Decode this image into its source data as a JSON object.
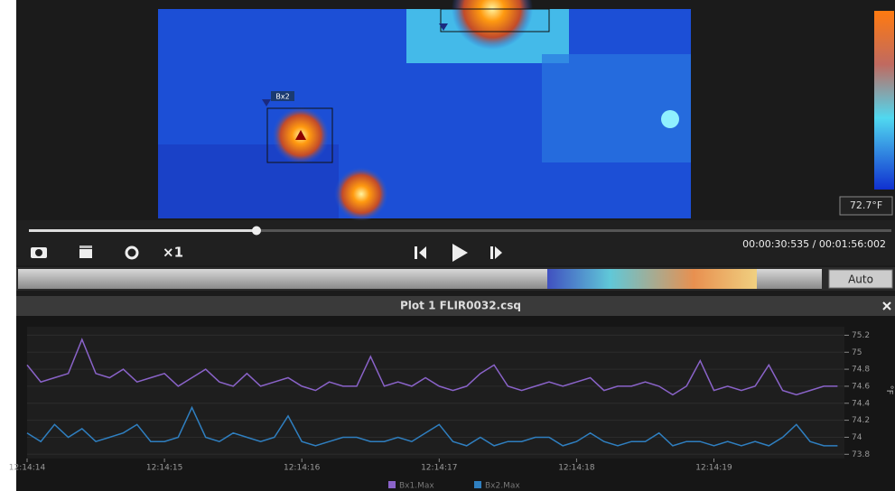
{
  "viewer": {
    "roi_label": "Bx2",
    "scale_min_label": "72.7°F"
  },
  "controls": {
    "speed": "×1",
    "time": "00:00:30:535 / 00:01:56:002",
    "auto_button": "Auto"
  },
  "chart_data": {
    "type": "line",
    "title": "Plot 1 FLIR0032.csq",
    "y_label": "°F",
    "x": [
      0,
      0.1,
      0.2,
      0.3,
      0.4,
      0.5,
      0.6,
      0.7,
      0.8,
      0.9,
      1,
      1.1,
      1.2,
      1.3,
      1.4,
      1.5,
      1.6,
      1.7,
      1.8,
      1.9,
      2,
      2.1,
      2.2,
      2.3,
      2.4,
      2.5,
      2.6,
      2.7,
      2.8,
      2.9,
      3,
      3.1,
      3.2,
      3.3,
      3.4,
      3.5,
      3.6,
      3.7,
      3.8,
      3.9,
      4,
      4.1,
      4.2,
      4.3,
      4.4,
      4.5,
      4.6,
      4.7,
      4.8,
      4.9,
      5,
      5.1,
      5.2,
      5.3,
      5.4,
      5.5,
      5.6,
      5.7,
      5.8,
      5.9
    ],
    "series": [
      {
        "name": "Bx1.Max",
        "color": "#8a63c9",
        "values": [
          74.85,
          74.65,
          74.7,
          74.75,
          75.15,
          74.75,
          74.7,
          74.8,
          74.65,
          74.7,
          74.75,
          74.6,
          74.7,
          74.8,
          74.65,
          74.6,
          74.75,
          74.6,
          74.65,
          74.7,
          74.6,
          74.55,
          74.65,
          74.6,
          74.6,
          74.95,
          74.6,
          74.65,
          74.6,
          74.7,
          74.6,
          74.55,
          74.6,
          74.75,
          74.85,
          74.6,
          74.55,
          74.6,
          74.65,
          74.6,
          74.65,
          74.7,
          74.55,
          74.6,
          74.6,
          74.65,
          74.6,
          74.5,
          74.6,
          74.9,
          74.55,
          74.6,
          74.55,
          74.6,
          74.85,
          74.55,
          74.5,
          74.55,
          74.6,
          74.6
        ]
      },
      {
        "name": "Bx2.Max",
        "color": "#2f7fc0",
        "values": [
          74.05,
          73.95,
          74.15,
          74.0,
          74.1,
          73.95,
          74.0,
          74.05,
          74.15,
          73.95,
          73.95,
          74.0,
          74.35,
          74.0,
          73.95,
          74.05,
          74.0,
          73.95,
          74.0,
          74.25,
          73.95,
          73.9,
          73.95,
          74.0,
          74.0,
          73.95,
          73.95,
          74.0,
          73.95,
          74.05,
          74.15,
          73.95,
          73.9,
          74.0,
          73.9,
          73.95,
          73.95,
          74.0,
          74.0,
          73.9,
          73.95,
          74.05,
          73.95,
          73.9,
          73.95,
          73.95,
          74.05,
          73.9,
          73.95,
          73.95,
          73.9,
          73.95,
          73.9,
          73.95,
          73.9,
          74.0,
          74.15,
          73.95,
          73.9,
          73.9
        ]
      }
    ],
    "xlim": [
      0,
      5.95
    ],
    "xticks": [
      {
        "value": 0,
        "label": "12:14:14"
      },
      {
        "value": 1,
        "label": "12:14:15"
      },
      {
        "value": 2,
        "label": "12:14:16"
      },
      {
        "value": 3,
        "label": "12:14:17"
      },
      {
        "value": 4,
        "label": "12:14:18"
      },
      {
        "value": 5,
        "label": "12:14:19"
      }
    ],
    "ylim": [
      73.75,
      75.3
    ],
    "yticks": [
      75.2,
      75,
      74.8,
      74.6,
      74.4,
      74.2,
      74,
      73.8
    ],
    "grid": true
  }
}
